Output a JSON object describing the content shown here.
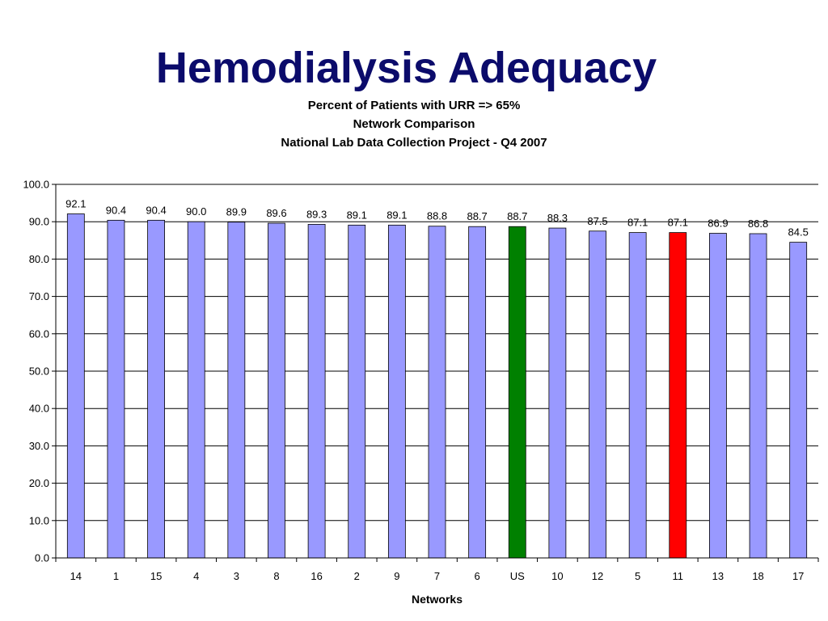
{
  "slide": {
    "title": "Hemodialysis Adequacy"
  },
  "chart_data": {
    "type": "bar",
    "title": "Percent of Patients with URR => 65%",
    "subtitle_lines": [
      "Network Comparison",
      "National Lab Data Collection Project - Q4 2007"
    ],
    "xlabel": "Networks",
    "ylabel": "",
    "ylim": [
      0,
      100
    ],
    "ytick_step": 10,
    "ytick_labels": [
      "0.0",
      "10.0",
      "20.0",
      "30.0",
      "40.0",
      "50.0",
      "60.0",
      "70.0",
      "80.0",
      "90.0",
      "100.0"
    ],
    "grid": true,
    "legend": "none",
    "categories": [
      "14",
      "1",
      "15",
      "4",
      "3",
      "8",
      "16",
      "2",
      "9",
      "7",
      "6",
      "US",
      "10",
      "12",
      "5",
      "11",
      "13",
      "18",
      "17"
    ],
    "values": [
      92.1,
      90.4,
      90.4,
      90.0,
      89.9,
      89.6,
      89.3,
      89.1,
      89.1,
      88.8,
      88.7,
      88.7,
      88.3,
      87.5,
      87.1,
      87.1,
      86.9,
      86.8,
      84.5
    ],
    "value_labels": [
      "92.1",
      "90.4",
      "90.4",
      "90.0",
      "89.9",
      "89.6",
      "89.3",
      "89.1",
      "89.1",
      "88.8",
      "88.7",
      "88.7",
      "88.3",
      "87.5",
      "87.1",
      "87.1",
      "86.9",
      "86.8",
      "84.5"
    ],
    "colors": {
      "default_bar": "#9999ff",
      "us_bar": "#008000",
      "network_11_bar": "#ff0000",
      "bar_outline": "#000000",
      "gridline": "#000000",
      "title": "#0b0b6b"
    },
    "highlight": {
      "US": "#008000",
      "11": "#ff0000"
    }
  }
}
